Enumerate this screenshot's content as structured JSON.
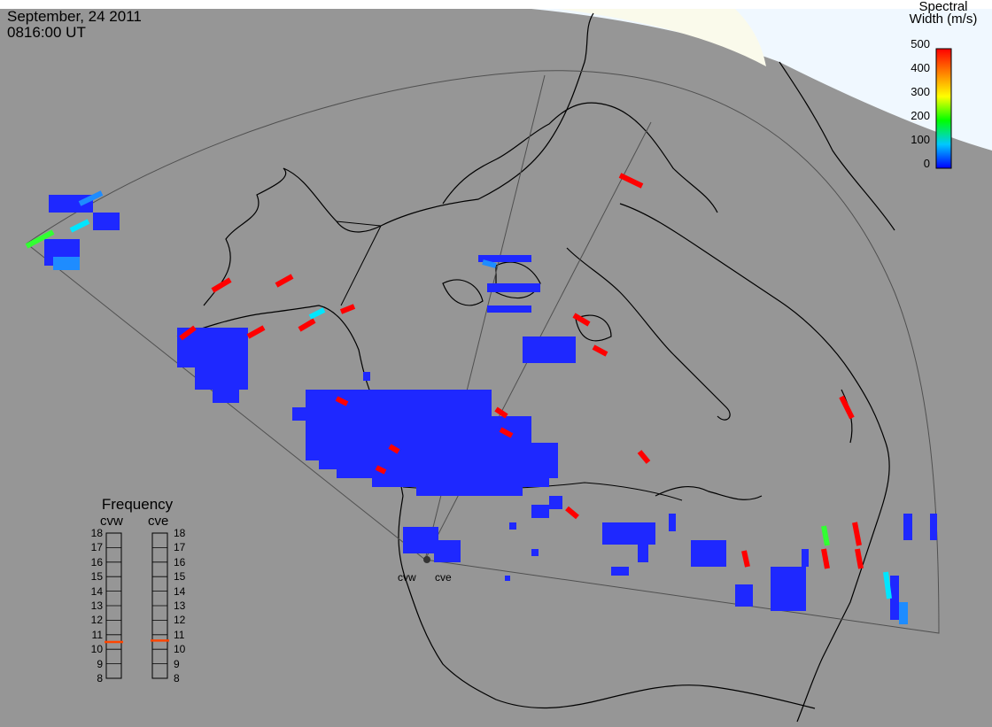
{
  "header": {
    "date": "September, 24 2011",
    "time": "0816:00 UT"
  },
  "colorbar": {
    "title_line1": "Spectral",
    "title_line2": "Width (m/s)",
    "ticks": [
      "500",
      "400",
      "300",
      "200",
      "100",
      "0"
    ]
  },
  "frequency_panel": {
    "title": "Frequency",
    "left_label": "cvw",
    "right_label": "cve",
    "ticks": [
      "18",
      "17",
      "16",
      "15",
      "14",
      "13",
      "12",
      "11",
      "10",
      "9",
      "8"
    ],
    "cvw_value_mhz": 10.5,
    "cve_value_mhz": 10.6,
    "marker_color": "#ff4500"
  },
  "sites": {
    "west": "cvw",
    "east": "cve"
  },
  "colors": {
    "ocean_land": "#969696",
    "daylight": "#f0f8ff",
    "sun_cream": "#fafaeb",
    "low": "#1e28ff",
    "high": "#ff0000"
  }
}
